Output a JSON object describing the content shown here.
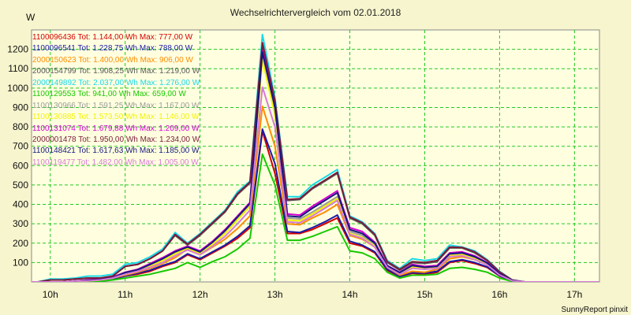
{
  "chart_data": {
    "type": "line",
    "title": "Wechselrichtervergleich vom 02.01.2018",
    "ylabel": "W",
    "xlabel": "",
    "ylim": [
      0,
      1300
    ],
    "xlim": [
      "09:45",
      "17:20"
    ],
    "y_ticks": [
      "100",
      "200",
      "300",
      "400",
      "500",
      "600",
      "700",
      "800",
      "900",
      "1000",
      "1100",
      "1200"
    ],
    "x_ticks": [
      "10h",
      "11h",
      "12h",
      "13h",
      "14h",
      "15h",
      "16h",
      "17h"
    ],
    "grid": true,
    "legend_position": "top-left",
    "x": [
      "09:40",
      "09:50",
      "10:00",
      "10:10",
      "10:20",
      "10:30",
      "10:40",
      "10:50",
      "11:00",
      "11:10",
      "11:20",
      "11:30",
      "11:40",
      "11:50",
      "12:00",
      "12:10",
      "12:20",
      "12:30",
      "12:40",
      "12:50",
      "13:00",
      "13:10",
      "13:20",
      "13:30",
      "13:40",
      "13:50",
      "14:00",
      "14:10",
      "14:20",
      "14:30",
      "14:40",
      "14:50",
      "15:00",
      "15:10",
      "15:20",
      "15:30",
      "15:40",
      "15:50",
      "16:00",
      "16:10",
      "16:20",
      "16:30",
      "16:40",
      "16:50",
      "17:00",
      "17:10",
      "17:20"
    ],
    "series": [
      {
        "name": "1100096436",
        "legend_text": "1100096436 Tot: 1.144,00 Wh Max: 777,00 W",
        "color": "#d40000",
        "values": [
          0,
          0,
          0,
          0,
          0,
          0,
          5,
          15,
          30,
          40,
          55,
          80,
          100,
          140,
          115,
          150,
          185,
          225,
          280,
          777,
          560,
          250,
          250,
          270,
          300,
          330,
          200,
          185,
          150,
          60,
          25,
          45,
          40,
          50,
          100,
          110,
          95,
          75,
          30,
          5,
          0,
          0,
          0,
          0,
          0,
          0,
          0
        ]
      },
      {
        "name": "1100096541",
        "legend_text": "1100096541 Tot: 1.228,75 Wh Max: 788,00 W",
        "color": "#1a1aa8",
        "values": [
          0,
          0,
          0,
          0,
          0,
          0,
          5,
          15,
          30,
          45,
          60,
          85,
          105,
          145,
          120,
          155,
          190,
          235,
          290,
          788,
          610,
          260,
          255,
          280,
          310,
          345,
          210,
          190,
          155,
          65,
          28,
          48,
          45,
          55,
          105,
          115,
          100,
          78,
          32,
          5,
          0,
          0,
          0,
          0,
          0,
          0,
          0
        ]
      },
      {
        "name": "2000150623",
        "legend_text": "2000150623 Tot: 1.400,00 Wh Max: 906,00 W",
        "color": "#ff8c00",
        "values": [
          0,
          0,
          0,
          0,
          0,
          0,
          8,
          20,
          35,
          50,
          70,
          95,
          125,
          170,
          140,
          180,
          220,
          275,
          340,
          906,
          700,
          300,
          295,
          330,
          360,
          400,
          240,
          220,
          180,
          75,
          35,
          55,
          50,
          65,
          120,
          130,
          115,
          90,
          38,
          8,
          0,
          0,
          0,
          0,
          0,
          0,
          0
        ]
      },
      {
        "name": "2000154799",
        "legend_text": "2000154799 Tot: 1.908,25 Wh Max: 1.219,00 W",
        "color": "#585858",
        "values": [
          0,
          0,
          10,
          10,
          15,
          20,
          20,
          30,
          80,
          90,
          120,
          160,
          240,
          190,
          240,
          300,
          360,
          450,
          510,
          1219,
          930,
          420,
          425,
          480,
          520,
          560,
          330,
          300,
          240,
          100,
          60,
          100,
          95,
          105,
          175,
          175,
          150,
          110,
          50,
          10,
          0,
          0,
          0,
          0,
          0,
          0,
          0
        ]
      },
      {
        "name": "2000149892",
        "legend_text": "2000149892 Tot: 2.037,00 Wh Max: 1.276,00 W",
        "color": "#18d8e8",
        "values": [
          0,
          0,
          15,
          15,
          20,
          30,
          30,
          40,
          90,
          100,
          130,
          170,
          255,
          200,
          250,
          310,
          370,
          465,
          520,
          1276,
          950,
          440,
          440,
          500,
          540,
          580,
          340,
          310,
          250,
          110,
          70,
          120,
          110,
          120,
          190,
          180,
          160,
          115,
          55,
          10,
          0,
          0,
          0,
          0,
          0,
          0,
          0
        ]
      },
      {
        "name": "1100129553",
        "legend_text": "1100129553 Tot: 941,00 Wh Max: 659,00 W",
        "color": "#17c800",
        "values": [
          0,
          0,
          0,
          0,
          0,
          0,
          3,
          10,
          20,
          30,
          40,
          55,
          70,
          100,
          75,
          105,
          130,
          170,
          225,
          659,
          500,
          215,
          215,
          235,
          260,
          285,
          160,
          150,
          120,
          50,
          20,
          35,
          35,
          40,
          70,
          75,
          65,
          50,
          20,
          3,
          0,
          0,
          0,
          0,
          0,
          0,
          0
        ]
      },
      {
        "name": "1100130966",
        "legend_text": "1100130966 Tot: 1.591,25 Wh Max: 1.167,00 W",
        "color": "#9a9a9a",
        "values": [
          0,
          0,
          0,
          0,
          5,
          5,
          10,
          20,
          45,
          60,
          85,
          115,
          150,
          180,
          150,
          200,
          260,
          330,
          400,
          1167,
          880,
          330,
          325,
          360,
          400,
          440,
          260,
          240,
          190,
          80,
          45,
          80,
          70,
          75,
          140,
          145,
          125,
          95,
          40,
          8,
          0,
          0,
          0,
          0,
          0,
          0,
          0
        ]
      },
      {
        "name": "1100130885",
        "legend_text": "1100130885 Tot: 1.573,50 Wh Max: 1.146,00 W",
        "color": "#f2f200",
        "values": [
          0,
          0,
          0,
          0,
          5,
          5,
          10,
          20,
          40,
          55,
          80,
          110,
          145,
          175,
          145,
          195,
          250,
          320,
          390,
          1146,
          860,
          320,
          315,
          350,
          390,
          430,
          250,
          230,
          185,
          78,
          42,
          75,
          68,
          72,
          135,
          140,
          120,
          92,
          38,
          8,
          0,
          0,
          0,
          0,
          0,
          0,
          0
        ]
      },
      {
        "name": "1100131074",
        "legend_text": "1100131074 Tot: 1.679,88 Wh Max: 1.209,00 W",
        "color": "#d100d1",
        "values": [
          0,
          0,
          0,
          0,
          5,
          10,
          15,
          25,
          50,
          65,
          95,
          125,
          160,
          185,
          160,
          210,
          270,
          340,
          410,
          1209,
          920,
          350,
          345,
          390,
          430,
          470,
          280,
          260,
          205,
          85,
          50,
          90,
          80,
          85,
          150,
          155,
          135,
          100,
          45,
          8,
          0,
          0,
          0,
          0,
          0,
          0,
          0
        ]
      },
      {
        "name": "2000001478",
        "legend_text": "2000001478 Tot: 1.950,00 Wh Max: 1.234,00 W",
        "color": "#7a1a3a",
        "values": [
          0,
          0,
          10,
          10,
          15,
          20,
          20,
          30,
          80,
          90,
          120,
          160,
          245,
          195,
          245,
          305,
          365,
          455,
          515,
          1234,
          935,
          425,
          430,
          485,
          525,
          565,
          335,
          305,
          245,
          105,
          65,
          105,
          100,
          110,
          180,
          178,
          155,
          112,
          52,
          10,
          0,
          0,
          0,
          0,
          0,
          0,
          0
        ]
      },
      {
        "name": "1100148421",
        "legend_text": "1100148421 Tot: 1.617,63 Wh Max: 1.185,00 W",
        "color": "#16167e",
        "values": [
          0,
          0,
          0,
          0,
          5,
          8,
          12,
          22,
          48,
          62,
          90,
          120,
          155,
          180,
          155,
          205,
          265,
          335,
          405,
          1185,
          900,
          340,
          335,
          380,
          420,
          460,
          270,
          250,
          200,
          82,
          48,
          85,
          75,
          80,
          145,
          150,
          130,
          98,
          42,
          8,
          0,
          0,
          0,
          0,
          0,
          0,
          0
        ]
      },
      {
        "name": "1100119477",
        "legend_text": "1100119477 Tot: 1.482,00 Wh Max: 1.005,00 W",
        "color": "#d67ad6",
        "values": [
          0,
          0,
          0,
          0,
          5,
          5,
          10,
          20,
          40,
          55,
          75,
          100,
          135,
          165,
          140,
          185,
          235,
          300,
          370,
          1005,
          800,
          310,
          305,
          340,
          380,
          420,
          245,
          225,
          180,
          75,
          40,
          70,
          65,
          70,
          130,
          135,
          115,
          88,
          36,
          6,
          0,
          0,
          0,
          0,
          0,
          0,
          0
        ]
      }
    ]
  },
  "footer": "SunnyReport pinxit"
}
